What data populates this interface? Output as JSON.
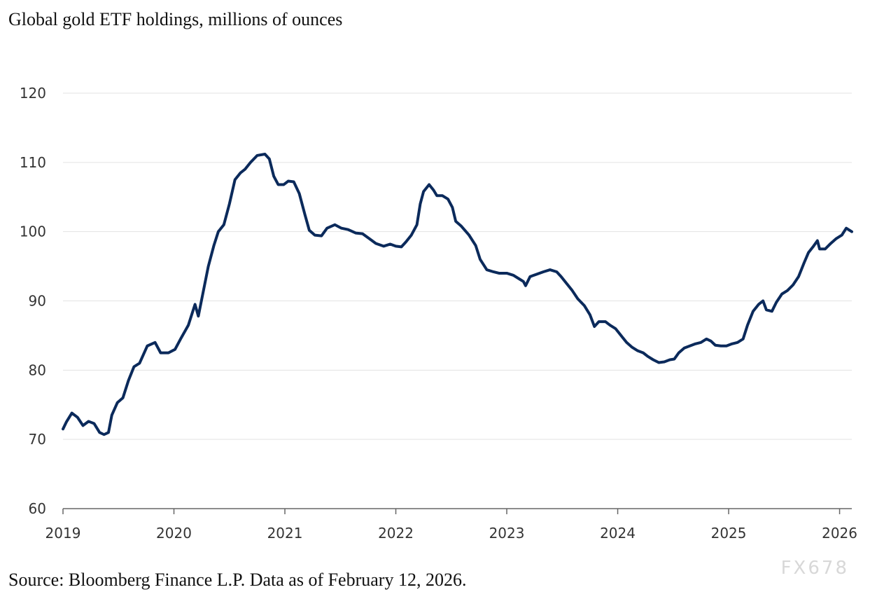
{
  "chart_data": {
    "type": "line",
    "title": "Global gold ETF holdings, millions of ounces",
    "source": "Source: Bloomberg Finance L.P. Data as of February 12, 2026.",
    "watermark": "FX678",
    "color": "#0b2a5b",
    "grid": true,
    "xlim": [
      2019,
      2026.11
    ],
    "xticks": [
      2019,
      2020,
      2021,
      2022,
      2023,
      2024,
      2025,
      2026
    ],
    "ylim": [
      60,
      120
    ],
    "yticks": [
      60,
      70,
      80,
      90,
      100,
      110,
      120
    ],
    "x": [
      2019,
      2019.03,
      2019.08,
      2019.13,
      2019.18,
      2019.23,
      2019.28,
      2019.33,
      2019.37,
      2019.41,
      2019.44,
      2019.49,
      2019.54,
      2019.59,
      2019.64,
      2019.69,
      2019.76,
      2019.83,
      2019.88,
      2019.95,
      2020.01,
      2020.06,
      2020.13,
      2020.19,
      2020.22,
      2020.26,
      2020.31,
      2020.36,
      2020.4,
      2020.45,
      2020.5,
      2020.55,
      2020.6,
      2020.64,
      2020.69,
      2020.75,
      2020.82,
      2020.86,
      2020.9,
      2020.94,
      2020.99,
      2021.03,
      2021.08,
      2021.13,
      2021.18,
      2021.22,
      2021.27,
      2021.33,
      2021.38,
      2021.45,
      2021.51,
      2021.57,
      2021.64,
      2021.7,
      2021.76,
      2021.82,
      2021.89,
      2021.95,
      2022.0,
      2022.05,
      2022.09,
      2022.14,
      2022.19,
      2022.22,
      2022.25,
      2022.3,
      2022.34,
      2022.37,
      2022.42,
      2022.47,
      2022.51,
      2022.54,
      2022.59,
      2022.66,
      2022.72,
      2022.76,
      2022.82,
      2022.88,
      2022.93,
      2023.0,
      2023.06,
      2023.11,
      2023.15,
      2023.17,
      2023.21,
      2023.26,
      2023.33,
      2023.39,
      2023.45,
      2023.49,
      2023.54,
      2023.59,
      2023.64,
      2023.7,
      2023.75,
      2023.79,
      2023.83,
      2023.89,
      2023.93,
      2023.98,
      2024.03,
      2024.08,
      2024.13,
      2024.18,
      2024.23,
      2024.27,
      2024.32,
      2024.37,
      2024.42,
      2024.47,
      2024.51,
      2024.55,
      2024.6,
      2024.65,
      2024.7,
      2024.75,
      2024.8,
      2024.84,
      2024.88,
      2024.93,
      2024.98,
      2025.03,
      2025.08,
      2025.13,
      2025.17,
      2025.22,
      2025.27,
      2025.31,
      2025.34,
      2025.39,
      2025.43,
      2025.48,
      2025.53,
      2025.58,
      2025.63,
      2025.68,
      2025.72,
      2025.76,
      2025.8,
      2025.82,
      2025.87,
      2025.92,
      2025.97,
      2026.02,
      2026.06,
      2026.11
    ],
    "values": [
      71.5,
      72.5,
      73.8,
      73.2,
      72.0,
      72.6,
      72.3,
      71.0,
      70.7,
      71.0,
      73.5,
      75.3,
      76.0,
      78.5,
      80.5,
      81.0,
      83.5,
      84.0,
      82.5,
      82.5,
      83.0,
      84.5,
      86.5,
      89.5,
      87.8,
      91.0,
      95.0,
      98.0,
      100.0,
      101.0,
      104.0,
      107.5,
      108.5,
      109.0,
      110.0,
      111.0,
      111.2,
      110.5,
      108.0,
      106.8,
      106.8,
      107.3,
      107.2,
      105.5,
      102.5,
      100.2,
      99.5,
      99.4,
      100.5,
      101.0,
      100.5,
      100.3,
      99.8,
      99.7,
      99.0,
      98.3,
      97.9,
      98.2,
      97.9,
      97.8,
      98.5,
      99.5,
      101.0,
      104.0,
      105.8,
      106.8,
      106.0,
      105.2,
      105.2,
      104.7,
      103.5,
      101.5,
      100.8,
      99.5,
      98.0,
      96.0,
      94.5,
      94.2,
      94.0,
      94.0,
      93.7,
      93.2,
      92.8,
      92.2,
      93.5,
      93.8,
      94.2,
      94.5,
      94.2,
      93.5,
      92.5,
      91.5,
      90.3,
      89.3,
      88.0,
      86.3,
      87.0,
      87.0,
      86.5,
      86.0,
      85.0,
      84.0,
      83.3,
      82.8,
      82.5,
      82.0,
      81.5,
      81.1,
      81.2,
      81.5,
      81.6,
      82.5,
      83.2,
      83.5,
      83.8,
      84.0,
      84.5,
      84.2,
      83.6,
      83.5,
      83.5,
      83.8,
      84.0,
      84.5,
      86.5,
      88.5,
      89.5,
      90.0,
      88.7,
      88.5,
      89.8,
      91.0,
      91.5,
      92.3,
      93.5,
      95.5,
      97.0,
      97.8,
      98.7,
      97.5,
      97.5,
      98.3,
      99.0,
      99.5,
      100.5,
      100.0
    ]
  }
}
